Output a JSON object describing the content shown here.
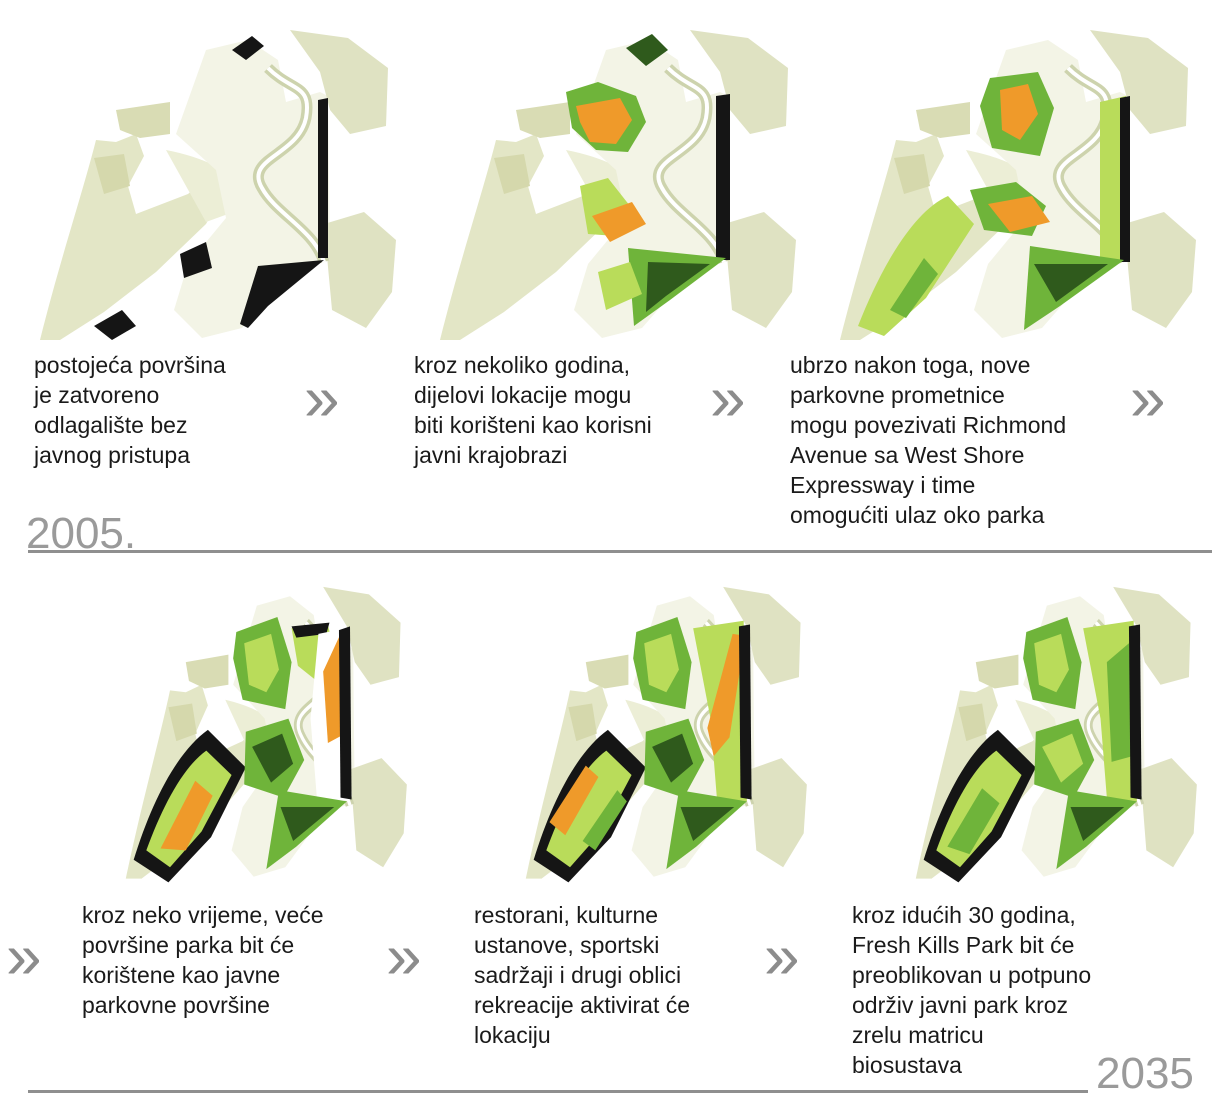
{
  "stages": [
    {
      "lines": [
        "postojeća površina",
        "je zatvoreno",
        "odlagalište bez",
        "javnog pristupa"
      ]
    },
    {
      "lines": [
        "kroz nekoliko godina,",
        "dijelovi lokacije mogu",
        "biti korišteni kao korisni",
        "javni krajobrazi"
      ]
    },
    {
      "lines": [
        "ubrzo nakon toga, nove",
        "parkovne prometnice",
        "mogu povezivati Richmond",
        "Avenue sa West Shore",
        "Expressway i time",
        "omogućiti ulaz oko parka"
      ]
    },
    {
      "lines": [
        "kroz neko vrijeme, veće",
        "površine parka bit će",
        "korištene kao javne",
        "parkovne površine"
      ]
    },
    {
      "lines": [
        "restorani, kulturne",
        "ustanove, sportski",
        "sadržaji i drugi oblici",
        "rekreacije aktivirat će",
        "lokaciju"
      ]
    },
    {
      "lines": [
        "kroz idućih 30 godina,",
        "Fresh Kills Park bit će",
        "preoblikovan u potpuno",
        "održiv javni park kroz",
        "zrelu matricu",
        "biosustava"
      ]
    }
  ],
  "years": {
    "start": "2005.",
    "end": "2035"
  },
  "arrow_symbol": "»",
  "colors": {
    "orange": "#ef9a2a",
    "light_green": "#b9dc5a",
    "mid_green": "#6fb43a",
    "dark_green": "#2f5a1c",
    "black": "#151515",
    "beige": "#e3e6c6",
    "rule": "#8f8f8f",
    "arrow": "#8c8c8c"
  }
}
